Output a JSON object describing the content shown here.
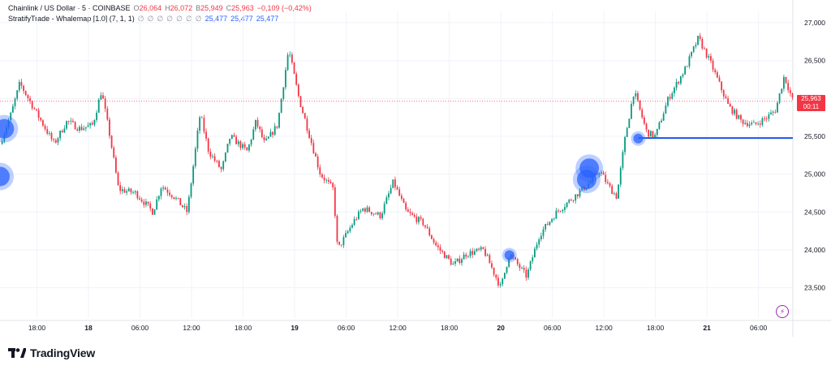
{
  "header": {
    "symbol": "Chainlink / US Dollar · 5 · COINBASE",
    "ohlc": [
      {
        "label": "O",
        "value": "26,064"
      },
      {
        "label": "H",
        "value": "26,072"
      },
      {
        "label": "B",
        "value": "25,949"
      },
      {
        "label": "C",
        "value": "25,963"
      }
    ],
    "change": "−0,109 (−0,42%)",
    "indicator": "StratifyTrade - Whalemap [1.0] (7, 1, 1)",
    "null_glyph": "∅",
    "indicator_values": [
      "25,477",
      "25,477",
      "25,477"
    ]
  },
  "price_tag": {
    "price": "25,963",
    "countdown": "00:11"
  },
  "brand": "TradingView",
  "colors": {
    "up": "#089981",
    "down": "#f23645",
    "whale": "#2962ff",
    "level": "#1e53e5"
  },
  "icons": {
    "logo": "tradingview-logo-icon",
    "alert": "lightning-bolt-icon"
  },
  "chart_data": {
    "type": "candlestick",
    "title": "Chainlink / US Dollar · 5 · COINBASE",
    "y_ticks": [
      "27,000",
      "26,500",
      "26,000",
      "25,500",
      "25,000",
      "24,500",
      "24,000",
      "23,500"
    ],
    "y_tick_values": [
      27000,
      26500,
      26000,
      25500,
      25000,
      24500,
      24000,
      23500
    ],
    "ylim": [
      23100,
      27150
    ],
    "x_ticks": [
      "18:00",
      "18",
      "06:00",
      "12:00",
      "18:00",
      "19",
      "06:00",
      "12:00",
      "18:00",
      "20",
      "06:00",
      "12:00",
      "18:00",
      "21",
      "06:00"
    ],
    "x_tick_hours": [
      18,
      24,
      30,
      36,
      42,
      48,
      54,
      60,
      66,
      72,
      78,
      84,
      90,
      96,
      102
    ],
    "xlim_hours": [
      13.7,
      106.0
    ],
    "last_price": 25963,
    "whale_level": 25477,
    "price_path": [
      [
        13.7,
        25400
      ],
      [
        15.0,
        25800
      ],
      [
        16.0,
        26200
      ],
      [
        17.5,
        25900
      ],
      [
        19.0,
        25600
      ],
      [
        20.0,
        25400
      ],
      [
        21.5,
        25700
      ],
      [
        23.0,
        25600
      ],
      [
        24.5,
        25650
      ],
      [
        25.5,
        26100
      ],
      [
        26.5,
        25500
      ],
      [
        27.5,
        24800
      ],
      [
        29.5,
        24750
      ],
      [
        31.5,
        24500
      ],
      [
        32.5,
        24850
      ],
      [
        34.0,
        24700
      ],
      [
        35.5,
        24500
      ],
      [
        37.0,
        25800
      ],
      [
        38.0,
        25300
      ],
      [
        39.5,
        25050
      ],
      [
        40.5,
        25500
      ],
      [
        42.5,
        25300
      ],
      [
        43.5,
        25700
      ],
      [
        44.5,
        25400
      ],
      [
        46.0,
        25650
      ],
      [
        47.3,
        26650
      ],
      [
        48.5,
        26000
      ],
      [
        49.5,
        25600
      ],
      [
        51.0,
        25000
      ],
      [
        52.5,
        24800
      ],
      [
        53.0,
        24000
      ],
      [
        55.0,
        24400
      ],
      [
        56.0,
        24550
      ],
      [
        58.0,
        24450
      ],
      [
        59.5,
        24900
      ],
      [
        61.0,
        24500
      ],
      [
        63.0,
        24350
      ],
      [
        64.5,
        24050
      ],
      [
        66.5,
        23800
      ],
      [
        68.0,
        23950
      ],
      [
        70.0,
        24000
      ],
      [
        72.0,
        23500
      ],
      [
        73.0,
        23950
      ],
      [
        75.0,
        23650
      ],
      [
        76.5,
        24200
      ],
      [
        78.5,
        24500
      ],
      [
        80.5,
        24700
      ],
      [
        82.5,
        24900
      ],
      [
        83.5,
        25050
      ],
      [
        84.5,
        24850
      ],
      [
        85.5,
        24700
      ],
      [
        86.5,
        25500
      ],
      [
        87.5,
        26100
      ],
      [
        89.0,
        25550
      ],
      [
        90.0,
        25500
      ],
      [
        91.5,
        26000
      ],
      [
        93.5,
        26400
      ],
      [
        95.0,
        26800
      ],
      [
        96.5,
        26450
      ],
      [
        98.5,
        25900
      ],
      [
        100.0,
        25700
      ],
      [
        101.5,
        25650
      ],
      [
        103.0,
        25750
      ],
      [
        104.0,
        25850
      ],
      [
        105.0,
        26300
      ],
      [
        106.0,
        25963
      ]
    ],
    "whale_bubbles": [
      {
        "x": 14.2,
        "y": 25600,
        "size": "large"
      },
      {
        "x": 13.7,
        "y": 24970,
        "size": "large"
      },
      {
        "x": 73.0,
        "y": 23930,
        "size": "small"
      },
      {
        "x": 82.3,
        "y": 25080,
        "size": "large"
      },
      {
        "x": 82.0,
        "y": 24930,
        "size": "large"
      },
      {
        "x": 88.0,
        "y": 25470,
        "size": "small"
      }
    ]
  }
}
